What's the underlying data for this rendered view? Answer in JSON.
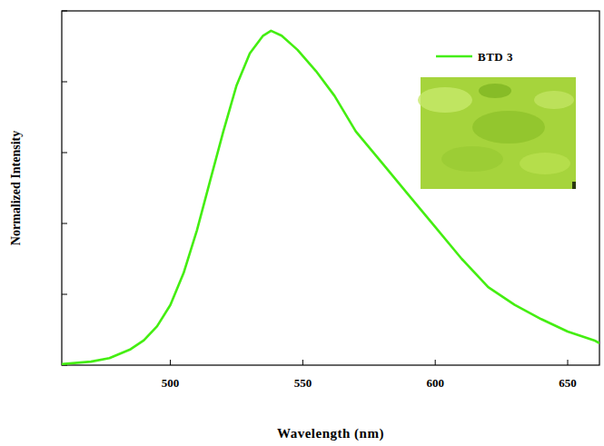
{
  "chart_data": {
    "type": "line",
    "x_label": "Wavelength (nm)",
    "y_label": "Normalized Intensity",
    "x": [
      459,
      470,
      477,
      485,
      490,
      495,
      500,
      505,
      510,
      515,
      520,
      525,
      530,
      535,
      538,
      542,
      548,
      555,
      562,
      570,
      580,
      590,
      600,
      610,
      620,
      630,
      640,
      650,
      660,
      662
    ],
    "series": [
      {
        "name": "BTD 3",
        "color": "#44ee11",
        "values": [
          0.003,
          0.01,
          0.02,
          0.045,
          0.07,
          0.11,
          0.17,
          0.26,
          0.38,
          0.52,
          0.66,
          0.79,
          0.88,
          0.93,
          0.944,
          0.93,
          0.89,
          0.83,
          0.76,
          0.66,
          0.57,
          0.48,
          0.39,
          0.3,
          0.22,
          0.17,
          0.13,
          0.095,
          0.07,
          0.062
        ]
      }
    ],
    "xlim": [
      459,
      662
    ],
    "xticks": [
      500,
      550,
      600,
      650
    ],
    "ylim": [
      0,
      1
    ],
    "yticks": [
      0,
      0.2,
      0.4,
      0.6,
      0.8,
      1
    ],
    "tick_labels": "x",
    "grid": false,
    "legend": "upper right"
  }
}
